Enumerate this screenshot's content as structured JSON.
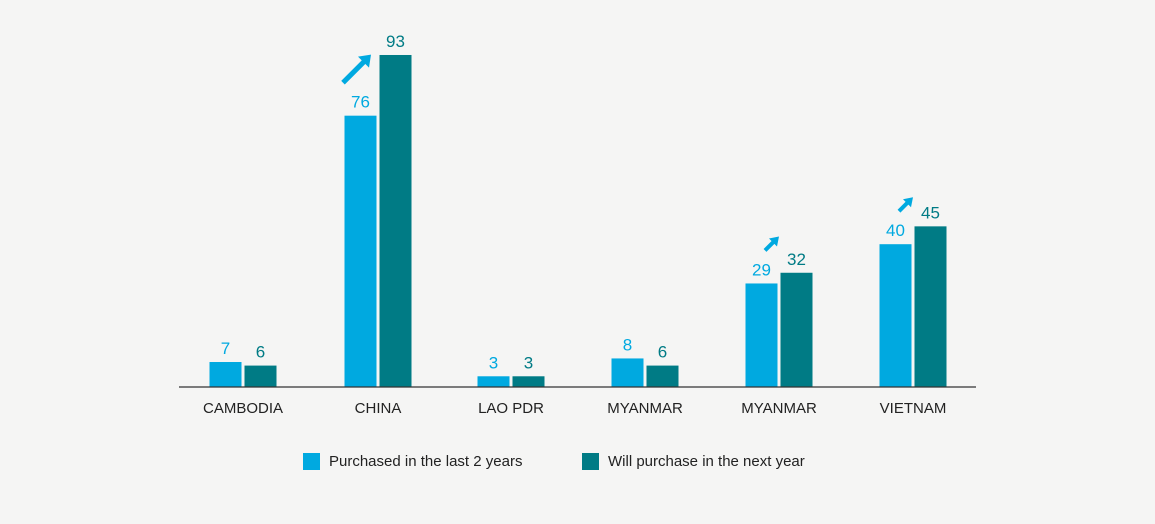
{
  "chart_data": {
    "type": "bar",
    "categories": [
      "CAMBODIA",
      "CHINA",
      "LAO PDR",
      "MYANMAR",
      "MYANMAR",
      "VIETNAM"
    ],
    "series": [
      {
        "name": "Purchased in the last 2 years",
        "values": [
          7,
          76,
          3,
          8,
          29,
          40
        ],
        "color": "#00a9e0"
      },
      {
        "name": "Will purchase in the next year",
        "values": [
          6,
          93,
          3,
          6,
          32,
          45
        ],
        "color": "#007b85"
      }
    ],
    "increase_arrows": [
      "CHINA",
      "MYANMAR",
      "VIETNAM"
    ],
    "increase_arrow_indices": [
      1,
      4,
      5
    ],
    "ylim": [
      0,
      100
    ],
    "legend_position": "bottom",
    "title": "",
    "xlabel": "",
    "ylabel": "",
    "arrow_color": "#00a9e0",
    "axis_color": "#333333"
  }
}
